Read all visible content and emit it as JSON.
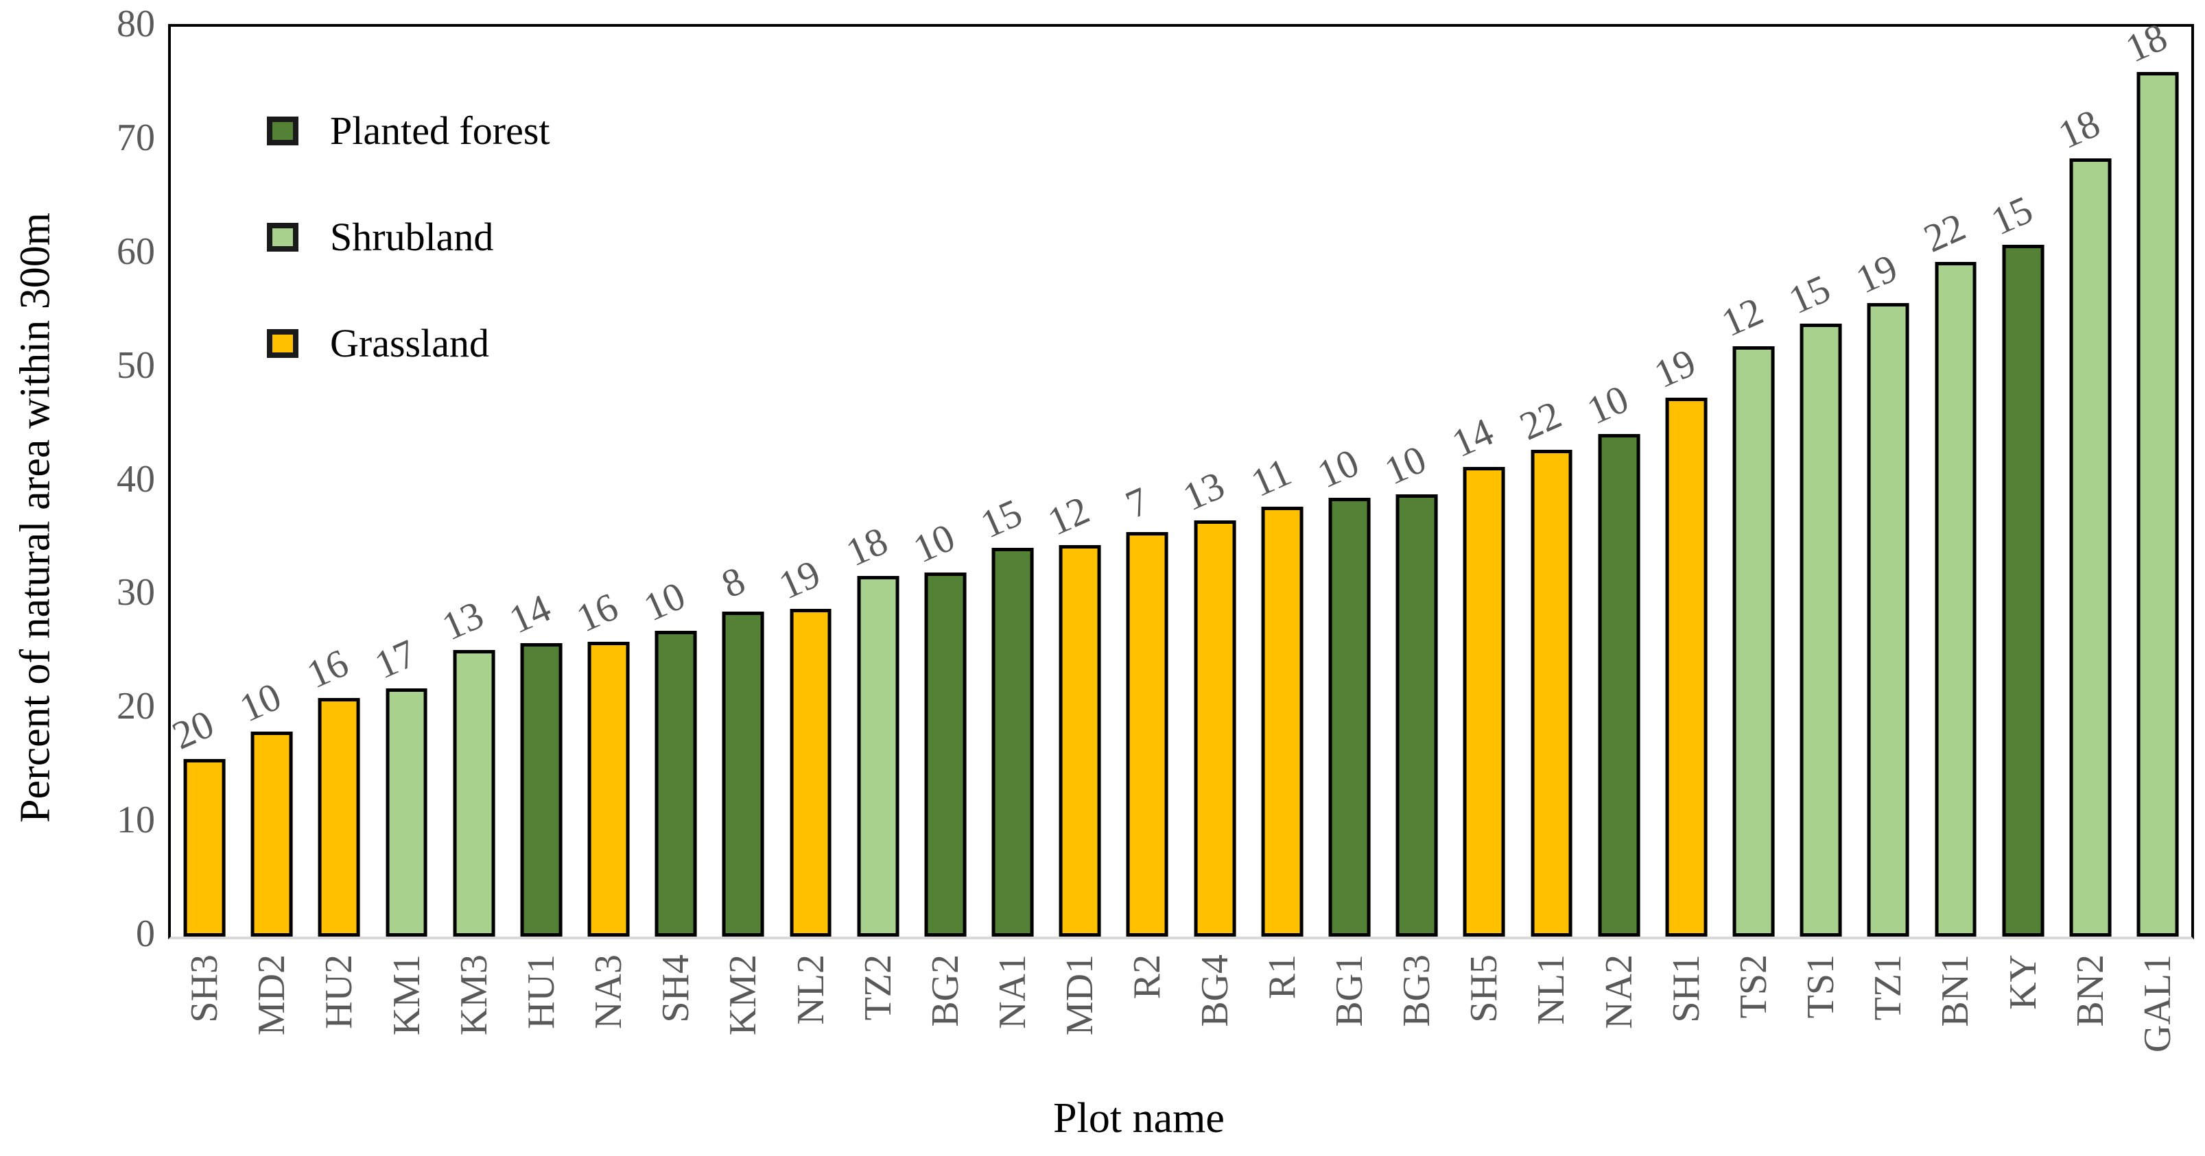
{
  "chart_data": {
    "type": "bar",
    "title": "",
    "xlabel": "Plot name",
    "ylabel": "Percent of natural area within 300m",
    "ylim": [
      0,
      80
    ],
    "yticks": [
      0,
      10,
      20,
      30,
      40,
      50,
      60,
      70,
      80
    ],
    "grid": false,
    "legend_position": "top-left-inside",
    "legend": [
      {
        "name": "Planted forest",
        "color": "#538135"
      },
      {
        "name": "Shrubland",
        "color": "#a9d18e"
      },
      {
        "name": "Grassland",
        "color": "#ffc000"
      }
    ],
    "bar_border_color": "#000000",
    "label_color": "#595959",
    "axis_line_color": "#000000",
    "baseline_color": "#d9d9d9",
    "bars": [
      {
        "plot": "SH3",
        "group": "Grassland",
        "value": 15.6,
        "label": "20"
      },
      {
        "plot": "MD2",
        "group": "Grassland",
        "value": 18.0,
        "label": "10"
      },
      {
        "plot": "HU2",
        "group": "Grassland",
        "value": 21.0,
        "label": "16"
      },
      {
        "plot": "KM1",
        "group": "Shrubland",
        "value": 21.8,
        "label": "17"
      },
      {
        "plot": "KM3",
        "group": "Shrubland",
        "value": 25.2,
        "label": "13"
      },
      {
        "plot": "HU1",
        "group": "Planted forest",
        "value": 25.8,
        "label": "14"
      },
      {
        "plot": "NA3",
        "group": "Grassland",
        "value": 25.9,
        "label": "16"
      },
      {
        "plot": "SH4",
        "group": "Planted forest",
        "value": 26.9,
        "label": "10"
      },
      {
        "plot": "KM2",
        "group": "Planted forest",
        "value": 28.6,
        "label": "8"
      },
      {
        "plot": "NL2",
        "group": "Grassland",
        "value": 28.8,
        "label": "19"
      },
      {
        "plot": "TZ2",
        "group": "Shrubland",
        "value": 31.7,
        "label": "18"
      },
      {
        "plot": "BG2",
        "group": "Planted forest",
        "value": 32.0,
        "label": "10"
      },
      {
        "plot": "NA1",
        "group": "Planted forest",
        "value": 34.2,
        "label": "15"
      },
      {
        "plot": "MD1",
        "group": "Grassland",
        "value": 34.4,
        "label": "12"
      },
      {
        "plot": "R2",
        "group": "Grassland",
        "value": 35.6,
        "label": "7"
      },
      {
        "plot": "BG4",
        "group": "Grassland",
        "value": 36.6,
        "label": "13"
      },
      {
        "plot": "R1",
        "group": "Grassland",
        "value": 37.8,
        "label": "11"
      },
      {
        "plot": "BG1",
        "group": "Planted forest",
        "value": 38.6,
        "label": "10"
      },
      {
        "plot": "BG3",
        "group": "Planted forest",
        "value": 38.9,
        "label": "10"
      },
      {
        "plot": "SH5",
        "group": "Grassland",
        "value": 41.3,
        "label": "14"
      },
      {
        "plot": "NL1",
        "group": "Grassland",
        "value": 42.8,
        "label": "22"
      },
      {
        "plot": "NA2",
        "group": "Planted forest",
        "value": 44.2,
        "label": "10"
      },
      {
        "plot": "SH1",
        "group": "Grassland",
        "value": 47.4,
        "label": "19"
      },
      {
        "plot": "TS2",
        "group": "Shrubland",
        "value": 51.9,
        "label": "12"
      },
      {
        "plot": "TS1",
        "group": "Shrubland",
        "value": 53.9,
        "label": "15"
      },
      {
        "plot": "TZ1",
        "group": "Shrubland",
        "value": 55.7,
        "label": "19"
      },
      {
        "plot": "BN1",
        "group": "Shrubland",
        "value": 59.3,
        "label": "22"
      },
      {
        "plot": "KY",
        "group": "Planted forest",
        "value": 60.8,
        "label": "15"
      },
      {
        "plot": "BN2",
        "group": "Shrubland",
        "value": 68.4,
        "label": "18"
      },
      {
        "plot": "GAL1",
        "group": "Shrubland",
        "value": 76.0,
        "label": "18"
      }
    ]
  }
}
